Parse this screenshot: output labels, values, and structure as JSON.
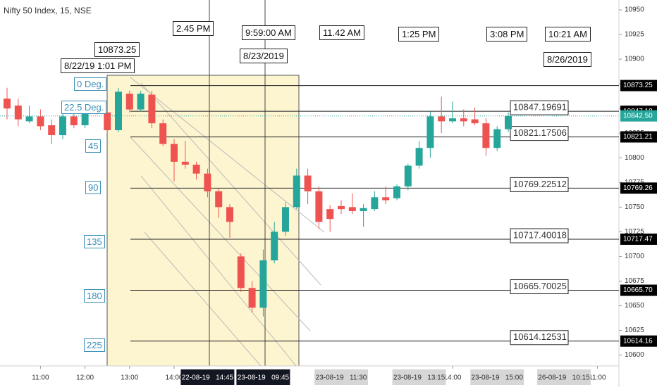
{
  "chart_data": {
    "type": "candlestick",
    "title": "Nifty 50 Index, 15, NSE",
    "colors": {
      "up": "#26a69a",
      "down": "#ef5350"
    },
    "candles": {
      "open": [
        10860,
        10853,
        10837,
        10842,
        10833,
        10823,
        10842,
        10833,
        10847,
        10846,
        10828,
        10865,
        10849,
        10864,
        10835,
        10814,
        10796,
        10793,
        10784,
        10766,
        10750,
        10700,
        10668,
        10648,
        10696,
        10725,
        10750,
        10782,
        10766,
        10748,
        10751,
        10750,
        10746,
        10748,
        10760,
        10759,
        10771,
        10792,
        10810,
        10842,
        10837,
        10840,
        10839,
        10835,
        10810,
        10829
      ],
      "high": [
        10871,
        10860,
        10853,
        10849,
        10839,
        10846,
        10853,
        10853,
        10851,
        10853,
        10871,
        10868,
        10868,
        10868,
        10839,
        10819,
        10817,
        10796,
        10789,
        10769,
        10753,
        10703,
        10675,
        10707,
        10735,
        10755,
        10789,
        10789,
        10771,
        10752,
        10757,
        10764,
        10753,
        10766,
        10771,
        10773,
        10794,
        10817,
        10847,
        10862,
        10857,
        10849,
        10851,
        10840,
        10832,
        10846
      ],
      "low": [
        10839,
        10832,
        10835,
        10828,
        10814,
        10819,
        10830,
        10830,
        10844,
        10825,
        10826,
        10846,
        10847,
        10830,
        10812,
        10776,
        10789,
        10778,
        10760,
        10739,
        10719,
        10664,
        10643,
        10639,
        10693,
        10721,
        10748,
        10753,
        10728,
        10725,
        10743,
        10743,
        10730,
        10746,
        10753,
        10757,
        10767,
        10789,
        10800,
        10825,
        10835,
        10832,
        10833,
        10802,
        10807,
        10826
      ],
      "close": [
        10850,
        10839,
        10842,
        10832,
        10823,
        10842,
        10833,
        10846,
        10846,
        10828,
        10867,
        10849,
        10865,
        10835,
        10814,
        10796,
        10793,
        10784,
        10766,
        10750,
        10735,
        10668,
        10648,
        10696,
        10725,
        10750,
        10782,
        10766,
        10735,
        10738,
        10748,
        10746,
        10749,
        10760,
        10757,
        10771,
        10792,
        10810,
        10842,
        10837,
        10840,
        10837,
        10835,
        10810,
        10829,
        10842.5
      ]
    },
    "ylim": [
      10589,
      10960
    ],
    "yticks": [
      10600,
      10625,
      10650,
      10675,
      10700,
      10725,
      10750,
      10775,
      10800,
      10825,
      10850,
      10875,
      10900,
      10925,
      10950
    ],
    "xlim": [
      -0.633,
      54.937
    ],
    "xticks": [
      {
        "value": 3,
        "label": "11:00"
      },
      {
        "value": 7,
        "label": "12:00"
      },
      {
        "value": 11,
        "label": "13:00"
      },
      {
        "value": 15,
        "label": "14:00"
      },
      {
        "value": 40,
        "label": "14:00"
      },
      {
        "value": 53,
        "label": "11:00"
      }
    ],
    "cursor_ticks": [
      {
        "value": 18,
        "label": "22-08-19   14:45"
      },
      {
        "value": 23,
        "label": "23-08-19   09:45"
      },
      {
        "value": 30,
        "label": "23-08-19   11:30"
      },
      {
        "value": 37,
        "label": "23-08-19   13:15"
      },
      {
        "value": 44,
        "label": "23-08-19   15:00"
      },
      {
        "value": 50,
        "label": "26-08-19   10:15"
      }
    ],
    "levels": {
      "degrees": [
        "0 Deg.",
        "22.5 Deg.",
        "45",
        "90",
        "135",
        "180",
        "225"
      ],
      "prices": [
        10873.25,
        10847.19691,
        10821.17506,
        10769.22512,
        10717.40018,
        10665.70025,
        10614.12531
      ]
    },
    "price_markers": [
      10873.25,
      10847.18,
      {
        "value": 10842.5,
        "label": "10842.50"
      },
      10821.21,
      10769.26,
      10717.47,
      {
        "value": 10665.7,
        "label": "10665.70"
      },
      10614.16
    ],
    "current_price": 10842.5,
    "annotations": [
      "2.45 PM",
      "9:59:00 AM",
      "11.42 AM",
      "1:25 PM",
      "3:08 PM",
      "10:21 AM",
      "8/23/2019",
      "8/26/2019",
      "10873.25",
      "8/22/19 1:01 PM"
    ]
  }
}
